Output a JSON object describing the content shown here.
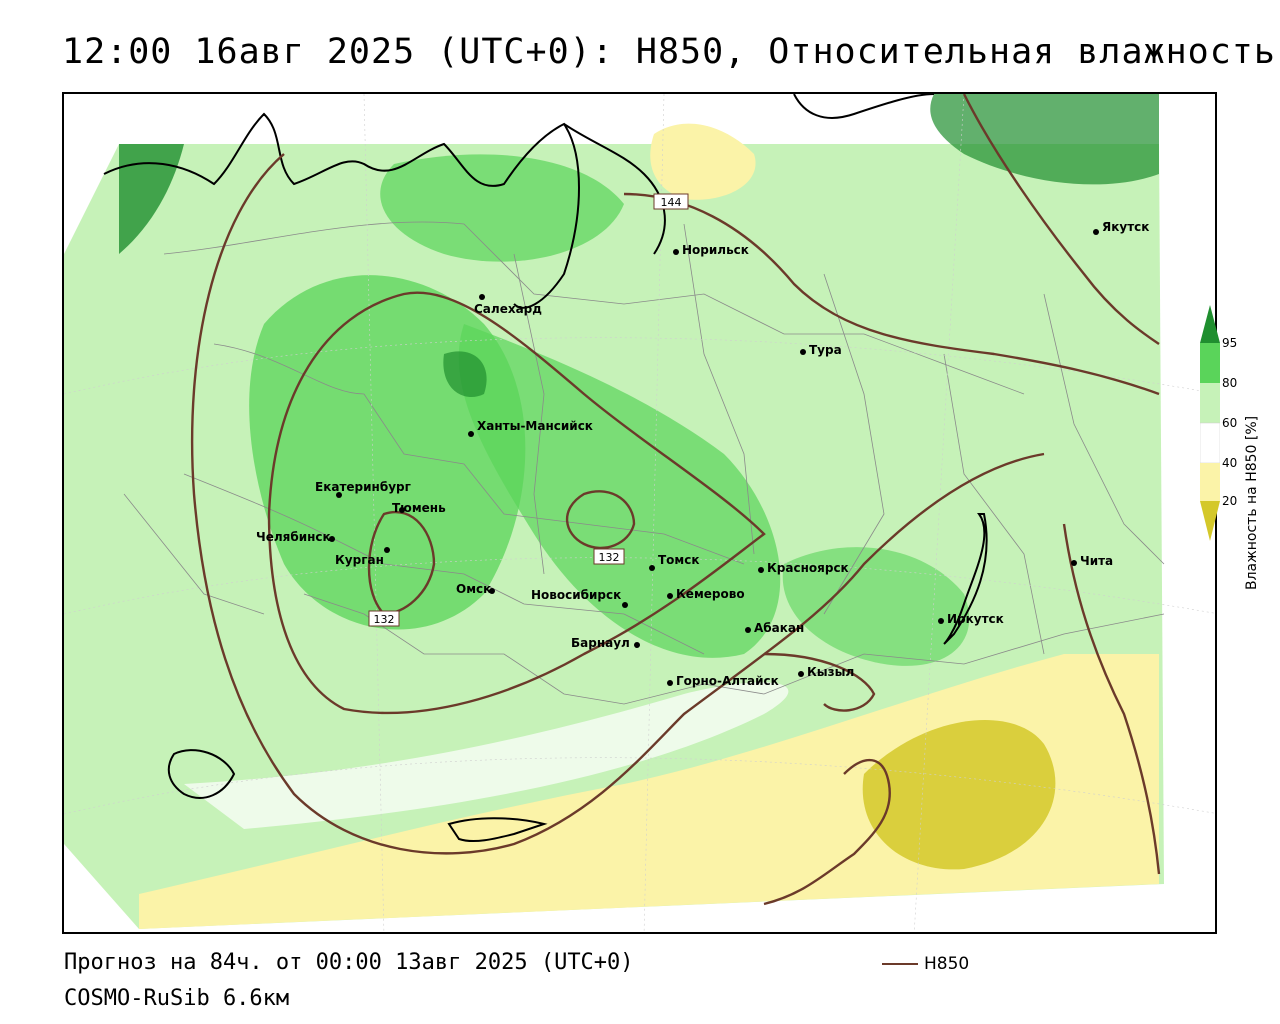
{
  "title": "12:00 16авг 2025 (UTC+0): H850, Относительная влажность",
  "footer": {
    "forecast": "Прогноз на 84ч. от 00:00 13авг 2025 (UTC+0)",
    "model": "COSMO-RuSib 6.6км"
  },
  "legend": {
    "line_label": "H850",
    "line_color": "#6b3a2a",
    "colorbar_title": "Влажность на H850 [%]",
    "ticks": [
      "95",
      "80",
      "60",
      "40",
      "20"
    ],
    "colors": {
      "very_dry": "#d4c82a",
      "dry": "#fbf3a8",
      "neutral": "#ffffff",
      "moist": "#c6f2b8",
      "wet": "#5ad45a",
      "very_wet": "#1f8f2f"
    }
  },
  "map": {
    "cities": [
      {
        "name": "Якутск"
      },
      {
        "name": "Норильск"
      },
      {
        "name": "Салехард"
      },
      {
        "name": "Тура"
      },
      {
        "name": "Ханты-Мансийск"
      },
      {
        "name": "Екатеринбург"
      },
      {
        "name": "Тюмень"
      },
      {
        "name": "Челябинск"
      },
      {
        "name": "Курган"
      },
      {
        "name": "Омск"
      },
      {
        "name": "Новосибирск"
      },
      {
        "name": "Томск"
      },
      {
        "name": "Кемерово"
      },
      {
        "name": "Красноярск"
      },
      {
        "name": "Барнаул"
      },
      {
        "name": "Абакан"
      },
      {
        "name": "Горно-Алтайск"
      },
      {
        "name": "Кызыл"
      },
      {
        "name": "Иркутск"
      },
      {
        "name": "Чита"
      }
    ],
    "contour_labels": [
      "144",
      "132",
      "132"
    ]
  }
}
